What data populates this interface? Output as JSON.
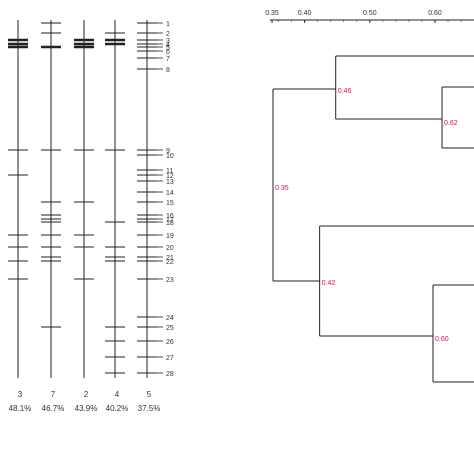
{
  "gel": {
    "lanes": [
      {
        "id": "3",
        "percent": "48.1%",
        "bands": [
          3,
          4,
          5,
          9,
          12,
          19,
          20,
          22,
          23
        ]
      },
      {
        "id": "7",
        "percent": "46.7%",
        "bands": [
          1,
          2,
          5,
          9,
          15,
          16,
          17,
          18,
          19,
          20,
          21,
          22,
          25
        ]
      },
      {
        "id": "2",
        "percent": "43.9%",
        "bands": [
          3,
          4,
          5,
          9,
          15,
          19,
          20,
          23
        ]
      },
      {
        "id": "4",
        "percent": "40.2%",
        "bands": [
          2,
          3,
          4,
          9,
          18,
          20,
          21,
          22,
          25,
          26,
          27,
          28
        ]
      },
      {
        "id": "5",
        "percent": "37.5%",
        "bands": [
          1,
          2,
          3,
          4,
          5,
          6,
          7,
          8,
          9,
          10,
          11,
          12,
          13,
          14,
          15,
          16,
          17,
          18,
          19,
          20,
          21,
          22,
          23,
          24,
          25,
          26,
          27,
          28
        ]
      }
    ],
    "heavy_bands": [
      3,
      4,
      5
    ],
    "band_numbers": [
      "1",
      "2",
      "3",
      "4",
      "5",
      "6",
      "7",
      "8",
      "9",
      "10",
      "11",
      "12",
      "13",
      "14",
      "15",
      "16",
      "17",
      "18",
      "19",
      "20",
      "21",
      "22",
      "23",
      "24",
      "25",
      "26",
      "27",
      "28"
    ]
  },
  "dendrogram": {
    "axis_ticks": [
      "0.35",
      "0.40",
      "0.50",
      "0.60"
    ],
    "axis_values": [
      0.35,
      0.4,
      0.5,
      0.6
    ],
    "node_labels": [
      "0.46",
      "0.62",
      "0.35",
      "0.42",
      "0.60"
    ],
    "node_color": "#d4145a"
  },
  "colors": {
    "line": "#222222",
    "text": "#333333"
  }
}
